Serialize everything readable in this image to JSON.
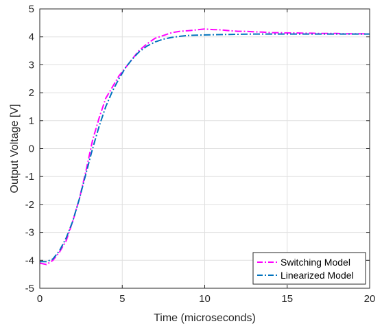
{
  "chart_data": {
    "type": "line",
    "title": "",
    "xlabel": "Time (microseconds)",
    "ylabel": "Output Voltage [V]",
    "xlim": [
      0,
      20
    ],
    "ylim": [
      -5,
      5
    ],
    "xticks": [
      0,
      5,
      10,
      15,
      20
    ],
    "yticks": [
      5,
      4,
      3,
      2,
      1,
      0,
      -1,
      -2,
      -3,
      -4,
      -5
    ],
    "xtick_labels": [
      "0",
      "5",
      "10",
      "15",
      "20"
    ],
    "ytick_labels": [
      "5",
      "4",
      "3",
      "2",
      "1",
      "0",
      "-1",
      "-2",
      "-3",
      "-4",
      "-5"
    ],
    "grid": true,
    "legend_position": "bottom-right",
    "series": [
      {
        "name": "Switching Model",
        "color": "#ff00ff",
        "line_style": "dash-dot",
        "x": [
          0,
          0.4,
          0.8,
          1.2,
          1.6,
          2.0,
          2.4,
          2.8,
          3.2,
          3.6,
          4.0,
          4.4,
          4.8,
          5.2,
          5.6,
          6.0,
          6.5,
          7.0,
          7.5,
          8.0,
          8.5,
          9.0,
          9.5,
          10.0,
          10.5,
          11.0,
          11.5,
          12.0,
          12.5,
          13.0,
          13.5,
          14.0,
          14.5,
          15.0,
          15.5,
          16.0,
          16.5,
          17.0,
          17.5,
          18.0,
          18.5,
          19.0,
          19.5,
          20.0
        ],
        "y": [
          -4.1,
          -4.15,
          -4.0,
          -3.7,
          -3.3,
          -2.6,
          -1.8,
          -0.8,
          0.3,
          1.1,
          1.8,
          2.2,
          2.6,
          2.9,
          3.2,
          3.5,
          3.75,
          3.95,
          4.05,
          4.15,
          4.2,
          4.22,
          4.25,
          4.28,
          4.26,
          4.25,
          4.22,
          4.2,
          4.2,
          4.18,
          4.17,
          4.15,
          4.15,
          4.14,
          4.14,
          4.13,
          4.13,
          4.12,
          4.12,
          4.12,
          4.11,
          4.11,
          4.11,
          4.1
        ]
      },
      {
        "name": "Linearized Model",
        "color": "#0072bd",
        "line_style": "dash-dot",
        "x": [
          0,
          0.4,
          0.8,
          1.2,
          1.6,
          2.0,
          2.4,
          2.8,
          3.2,
          3.6,
          4.0,
          4.4,
          4.8,
          5.2,
          5.6,
          6.0,
          6.5,
          7.0,
          7.5,
          8.0,
          8.5,
          9.0,
          9.5,
          10.0,
          11.0,
          12.0,
          13.0,
          14.0,
          15.0,
          16.0,
          17.0,
          18.0,
          19.0,
          20.0
        ],
        "y": [
          -4.05,
          -4.05,
          -3.95,
          -3.65,
          -3.2,
          -2.6,
          -1.8,
          -0.9,
          0.0,
          0.8,
          1.5,
          2.05,
          2.5,
          2.9,
          3.2,
          3.45,
          3.67,
          3.82,
          3.92,
          3.98,
          4.02,
          4.05,
          4.06,
          4.07,
          4.08,
          4.09,
          4.1,
          4.1,
          4.1,
          4.1,
          4.1,
          4.1,
          4.1,
          4.1
        ]
      }
    ]
  }
}
